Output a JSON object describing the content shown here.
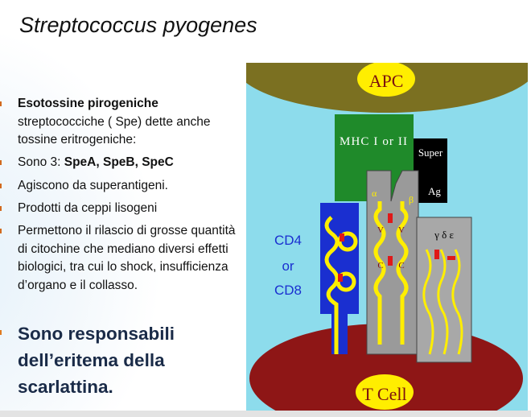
{
  "title": "Streptococcus pyogenes",
  "bullets": [
    {
      "bold": "Esotossine pirogeniche",
      "text": "streptococciche ( Spe) dette anche tossine eritrogeniche:"
    },
    {
      "text": "Sono 3: ",
      "bold": "SpeA, SpeB, SpeC"
    },
    {
      "text": "Agiscono da superantigeni."
    },
    {
      "text": "Prodotti da ceppi lisogeni"
    },
    {
      "text": "Permettono il rilascio di grosse quantità di citochine che mediano diversi effetti biologici, tra cui lo shock, insufficienza d’organo  e il collasso."
    }
  ],
  "highlight": "Sono responsabili dell’eritema della scarlattina.",
  "diagram": {
    "apc": "APC",
    "mhc": "MHC I or II",
    "superag": [
      "Super",
      "Ag"
    ],
    "cd": [
      "CD4",
      "or",
      "CD8"
    ],
    "alpha": "α",
    "beta": "β",
    "v": "V",
    "c": "C",
    "chains": "γ δ ε",
    "tcell": "T Cell"
  }
}
